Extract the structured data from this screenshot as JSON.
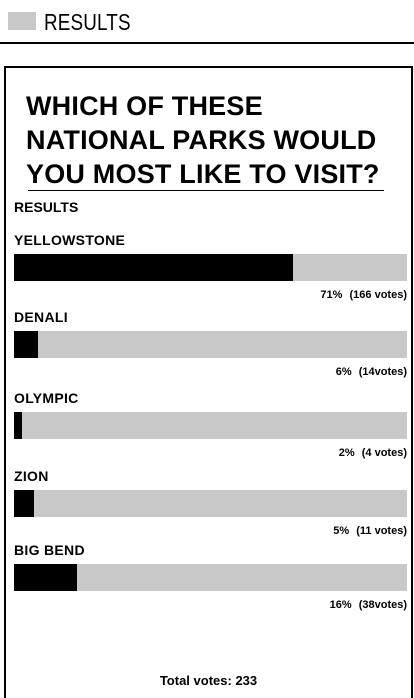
{
  "header": {
    "title": "RESULTS"
  },
  "poll": {
    "question": "WHICH OF THESE NATIONAL PARKS WOULD YOU MOST LIKE TO VISIT?",
    "results_heading": "RESULTS",
    "options": [
      {
        "label": "YELLOWSTONE",
        "percent_text": "71%",
        "votes_text": "(166 votes)",
        "share": 0.71
      },
      {
        "label": "DENALI",
        "percent_text": "6%",
        "votes_text": "(14votes)",
        "share": 0.06
      },
      {
        "label": "OLYMPIC",
        "percent_text": "2%",
        "votes_text": "(4 votes)",
        "share": 0.02
      },
      {
        "label": "ZION",
        "percent_text": "5%",
        "votes_text": "(11 votes)",
        "share": 0.05
      },
      {
        "label": "BIG BEND",
        "percent_text": "16%",
        "votes_text": "(38votes)",
        "share": 0.16
      }
    ],
    "total_label": "Total votes:",
    "total_value": "233"
  },
  "colors": {
    "bar_track": "#c8c8c8",
    "bar_fill": "#000000",
    "border": "#000000"
  }
}
